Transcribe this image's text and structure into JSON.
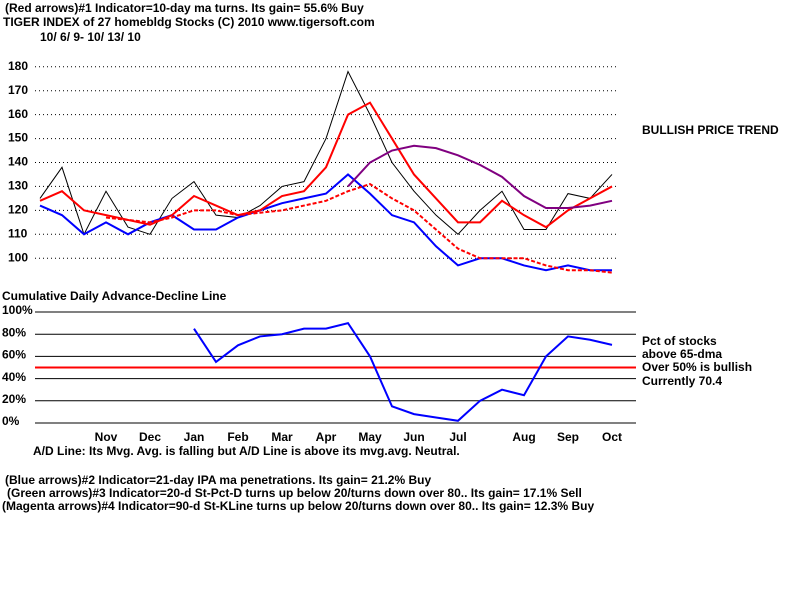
{
  "chart_data": {
    "type": "line",
    "title": "TIGER INDEX of  27 homebldg Stocks  (C) 2010  www.tigersoft.com",
    "subtitle": "10/ 6/ 9-  10/ 13/ 10",
    "y2_title": "Cumulative Daily Advance-Decline Line",
    "annotations": [
      "(Red arrows)#1 Indicator=10-day ma turns.  Its gain= 55.6% Buy",
      "BULLISH PRICE TREND",
      "Pct of stocks",
      "above 65-dma",
      "Over 50% is bullish",
      "Currently  70.4",
      "A/D Line: Its Mvg. Avg. is falling but A/D Line is above its mvg.avg. Neutral.",
      "(Blue arrows)#2 Indicator=21-day IPA ma penetrations.  Its gain= 21.2% Buy",
      "(Green arrows)#3 Indicator=20-d St-Pct-D turns up below 20/turns down over 80..  Its gain= 17.1% Sell",
      "(Magenta arrows)#4 Indicator=90-d St-KLine turns up below 20/turns down over 80..  Its gain= 12.3% Buy"
    ],
    "categories": [
      null,
      null,
      null,
      "Nov",
      null,
      "Dec",
      null,
      "Jan",
      null,
      "Feb",
      null,
      "Mar",
      null,
      "Apr",
      null,
      "May",
      null,
      "Jun",
      null,
      "Jul",
      null,
      null,
      "Aug",
      null,
      "Sep",
      null,
      "Oct"
    ],
    "series": [
      {
        "color": "#000000",
        "values": [
          125,
          138,
          110,
          128,
          113,
          110,
          125,
          132,
          118,
          117,
          122,
          130,
          132,
          150,
          178,
          160,
          140,
          128,
          118,
          110,
          120,
          128,
          112,
          112,
          127,
          125,
          135
        ]
      },
      {
        "color": "#0000ff",
        "values": [
          122,
          118,
          110,
          115,
          110,
          115,
          118,
          112,
          112,
          117,
          120,
          123,
          125,
          127,
          135,
          127,
          118,
          115,
          105,
          97,
          100,
          100,
          97,
          95,
          97,
          95,
          95
        ]
      },
      {
        "color": "#ff0000",
        "values": [
          124,
          128,
          120,
          118,
          116,
          114,
          118,
          126,
          122,
          118,
          120,
          126,
          128,
          138,
          160,
          165,
          150,
          135,
          125,
          115,
          115,
          124,
          118,
          113,
          120,
          125,
          130
        ]
      },
      {
        "color": "#ff0000",
        "dash": true,
        "values": [
          null,
          null,
          null,
          117,
          116,
          115,
          117,
          120,
          120,
          118,
          119,
          120,
          122,
          124,
          128,
          131,
          125,
          120,
          112,
          104,
          100,
          100,
          100,
          97,
          95,
          95,
          94
        ]
      },
      {
        "color": "#800080",
        "values": [
          null,
          null,
          null,
          null,
          null,
          null,
          null,
          null,
          null,
          null,
          null,
          null,
          null,
          null,
          130,
          140,
          145,
          147,
          146,
          143,
          139,
          134,
          126,
          121,
          121,
          122,
          124
        ]
      },
      {
        "color": "#0000ff",
        "axis": "y2",
        "values": [
          null,
          null,
          null,
          null,
          null,
          null,
          null,
          85,
          55,
          70,
          78,
          80,
          85,
          85,
          90,
          60,
          15,
          8,
          5,
          2,
          20,
          30,
          25,
          60,
          78,
          75,
          70.4
        ]
      }
    ],
    "ylim": [
      93,
      187
    ],
    "yticks": [
      100,
      110,
      120,
      130,
      140,
      150,
      160,
      170,
      180
    ],
    "y2lim": [
      0,
      100
    ],
    "y2ticks": [
      {
        "value": 0,
        "label": "0%"
      },
      {
        "value": 20,
        "label": "20%"
      },
      {
        "value": 40,
        "label": "40%"
      },
      {
        "value": 60,
        "label": "60%"
      },
      {
        "value": 80,
        "label": "80%"
      },
      {
        "value": 100,
        "label": "100%"
      }
    ],
    "y2_threshold": 50,
    "threshold_color": "#ff0000",
    "grid": true
  }
}
